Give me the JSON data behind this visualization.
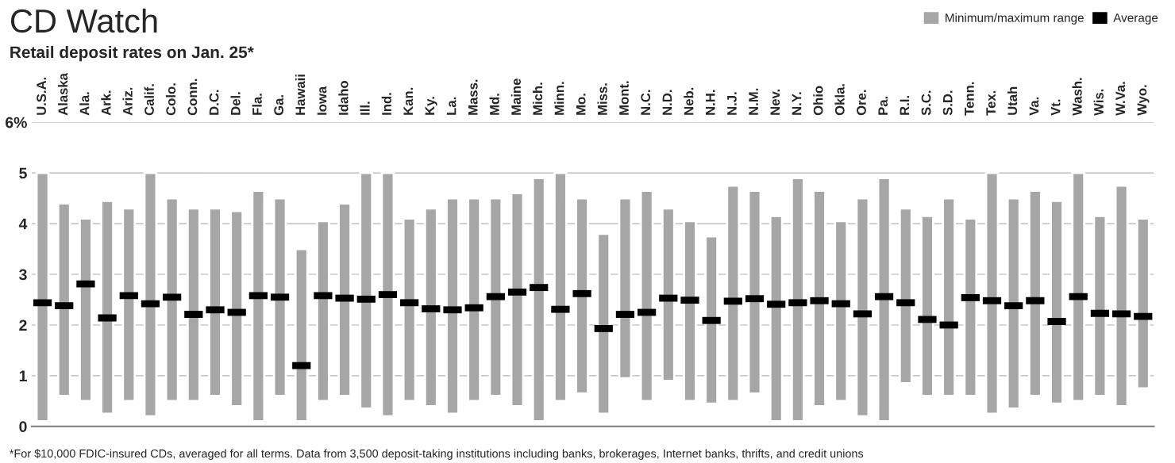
{
  "chart_data": {
    "type": "bar",
    "title": "CD Watch",
    "subtitle": "Retail deposit rates on Jan. 25*",
    "categories": [
      "U.S.A.",
      "Alaska",
      "Ala.",
      "Ark.",
      "Ariz.",
      "Calif.",
      "Colo.",
      "Conn.",
      "D.C.",
      "Del.",
      "Fla.",
      "Ga.",
      "Hawaii",
      "Iowa",
      "Idaho",
      "Ill.",
      "Ind.",
      "Kan.",
      "Ky.",
      "La.",
      "Mass.",
      "Md.",
      "Maine",
      "Mich.",
      "Minn.",
      "Mo.",
      "Miss.",
      "Mont.",
      "N.C.",
      "N.D.",
      "Neb.",
      "N.H.",
      "N.J.",
      "N.M.",
      "Nev.",
      "N.Y.",
      "Ohio",
      "Okla.",
      "Ore.",
      "Pa.",
      "R.I.",
      "S.C.",
      "S.D.",
      "Tenn.",
      "Tex.",
      "Utah",
      "Va.",
      "Vt.",
      "Wash.",
      "Wis.",
      "W.Va.",
      "Wyo."
    ],
    "series": [
      {
        "name": "Minimum/maximum range",
        "color": "#a6a6a6",
        "base": [
          0.1,
          0.6,
          0.5,
          0.25,
          0.5,
          0.2,
          0.5,
          0.5,
          0.6,
          0.4,
          0.1,
          0.6,
          0.1,
          0.5,
          0.6,
          0.35,
          0.2,
          0.5,
          0.4,
          0.25,
          0.5,
          0.6,
          0.4,
          0.1,
          0.5,
          0.65,
          0.25,
          0.95,
          0.5,
          0.9,
          0.5,
          0.45,
          0.5,
          0.65,
          0.1,
          0.1,
          0.4,
          0.5,
          0.2,
          0.1,
          0.85,
          0.6,
          0.6,
          0.6,
          0.25,
          0.35,
          0.6,
          0.45,
          0.5,
          0.6,
          0.4,
          0.75
        ],
        "values": [
          4.9,
          3.8,
          3.6,
          4.2,
          3.8,
          4.8,
          4.0,
          3.8,
          3.7,
          3.85,
          4.55,
          3.9,
          3.4,
          3.55,
          3.8,
          4.65,
          4.8,
          3.6,
          3.9,
          4.25,
          4.0,
          3.9,
          4.2,
          4.8,
          4.5,
          3.85,
          3.55,
          3.55,
          4.15,
          3.4,
          3.55,
          3.3,
          4.25,
          4.0,
          4.05,
          4.8,
          4.25,
          3.55,
          4.3,
          4.8,
          3.45,
          3.55,
          3.9,
          3.5,
          4.75,
          4.15,
          4.05,
          4.0,
          4.5,
          3.55,
          4.35,
          3.35
        ]
      },
      {
        "name": "Average",
        "type": "scatter",
        "color": "#000000",
        "values": [
          2.44,
          2.38,
          2.81,
          2.14,
          2.58,
          2.42,
          2.55,
          2.21,
          2.3,
          2.25,
          2.58,
          2.55,
          1.2,
          2.58,
          2.53,
          2.51,
          2.6,
          2.44,
          2.32,
          2.3,
          2.34,
          2.56,
          2.65,
          2.74,
          2.31,
          2.62,
          1.93,
          2.21,
          2.25,
          2.53,
          2.49,
          2.09,
          2.47,
          2.52,
          2.41,
          2.44,
          2.48,
          2.42,
          2.22,
          2.56,
          2.44,
          2.11,
          2.0,
          2.54,
          2.48,
          2.38,
          2.48,
          2.07,
          2.56,
          2.23,
          2.22,
          2.17
        ]
      }
    ],
    "ylim": [
      0,
      6
    ],
    "yticks": [
      0,
      1,
      2,
      3,
      4,
      5,
      {
        "value": 6,
        "label": "6%"
      }
    ],
    "grid": "y",
    "legend": "top right",
    "annotations": [
      "*For $10,000 FDIC-insured CDs, averaged for all terms. Data from 3,500 deposit-taking institutions including banks, brokerages, Internet banks, thrifts, and credit unions"
    ]
  }
}
